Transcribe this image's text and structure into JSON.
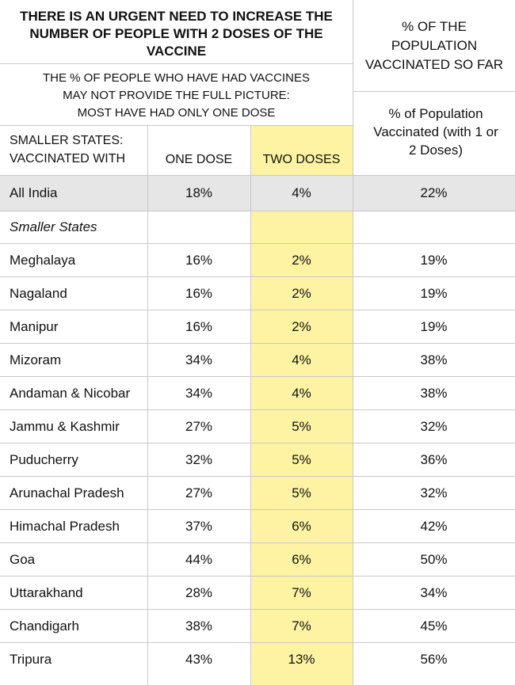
{
  "header": {
    "main_title": "THERE IS AN URGENT NEED TO INCREASE THE NUMBER OF PEOPLE WITH 2 DOSES OF THE VACCINE",
    "right_title": "% OF THE POPULATION VACCINATED SO FAR",
    "subtitle_lines": [
      "THE % OF PEOPLE WHO HAVE HAD VACCINES",
      "MAY NOT PROVIDE THE FULL PICTURE:",
      "MOST HAVE HAD ONLY ONE DOSE"
    ],
    "right_subtitle": "% of Population Vaccinated (with 1 or 2 Doses)"
  },
  "columns": {
    "states": "SMALLER STATES: VACCINATED WITH",
    "one_dose": "ONE DOSE",
    "two_doses": "TWO DOSES"
  },
  "all_india": {
    "label": "All India",
    "one_dose": "18%",
    "two_doses": "4%",
    "total": "22%"
  },
  "section_label": "Smaller States",
  "colors": {
    "highlight": "#fdf3a3",
    "all_india_bg": "#e6e6e6",
    "rule": "#c8c8c8"
  },
  "chart_data": {
    "type": "table",
    "title": "THERE IS AN URGENT NEED TO INCREASE THE NUMBER OF PEOPLE WITH 2 DOSES OF THE VACCINE",
    "columns": [
      "SMALLER STATES: VACCINATED WITH",
      "ONE DOSE",
      "TWO DOSES",
      "% of Population Vaccinated (with 1 or 2 Doses)"
    ],
    "rows": [
      {
        "state": "Meghalaya",
        "one_dose": "16%",
        "two_doses": "2%",
        "total": "19%"
      },
      {
        "state": "Nagaland",
        "one_dose": "16%",
        "two_doses": "2%",
        "total": "19%"
      },
      {
        "state": "Manipur",
        "one_dose": "16%",
        "two_doses": "2%",
        "total": "19%"
      },
      {
        "state": "Mizoram",
        "one_dose": "34%",
        "two_doses": "4%",
        "total": "38%"
      },
      {
        "state": "Andaman & Nicobar",
        "one_dose": "34%",
        "two_doses": "4%",
        "total": "38%"
      },
      {
        "state": "Jammu & Kashmir",
        "one_dose": "27%",
        "two_doses": "5%",
        "total": "32%"
      },
      {
        "state": "Puducherry",
        "one_dose": "32%",
        "two_doses": "5%",
        "total": "36%"
      },
      {
        "state": "Arunachal Pradesh",
        "one_dose": "27%",
        "two_doses": "5%",
        "total": "32%"
      },
      {
        "state": "Himachal Pradesh",
        "one_dose": "37%",
        "two_doses": "6%",
        "total": "42%"
      },
      {
        "state": "Goa",
        "one_dose": "44%",
        "two_doses": "6%",
        "total": "50%"
      },
      {
        "state": "Uttarakhand",
        "one_dose": "28%",
        "two_doses": "7%",
        "total": "34%"
      },
      {
        "state": "Chandigarh",
        "one_dose": "38%",
        "two_doses": "7%",
        "total": "45%"
      },
      {
        "state": "Tripura",
        "one_dose": "43%",
        "two_doses": "13%",
        "total": "56%"
      }
    ]
  }
}
